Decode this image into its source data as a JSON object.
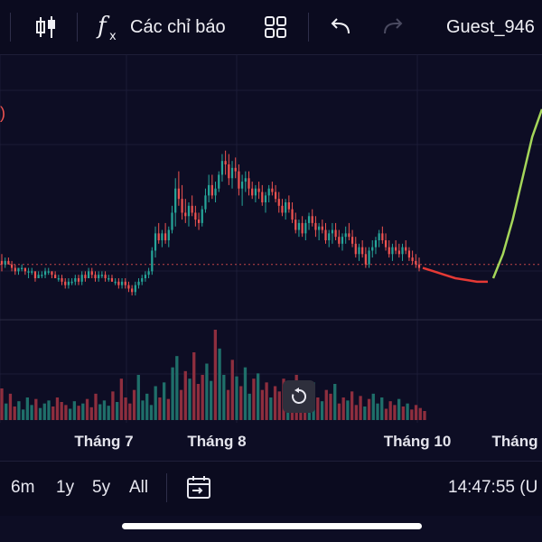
{
  "toolbar": {
    "indicators_label": "Các chỉ báo",
    "user_label": "Guest_946",
    "icons": [
      "candlestick-icon",
      "fx-icon",
      "layout-grid-icon",
      "undo-icon",
      "redo-icon"
    ]
  },
  "chart": {
    "left_edge_label": ")",
    "x_ticks": [
      "Tháng 7",
      "Tháng 8",
      "Tháng 10",
      "Tháng"
    ]
  },
  "bottom": {
    "ranges": [
      "6m",
      "1y",
      "5y",
      "All"
    ],
    "clock": "14:47:55 (U"
  },
  "colors": {
    "background": "#0d0d24",
    "up": "#26a69a",
    "down": "#ef5350",
    "forecast_down": "#e53935",
    "forecast_up": "#a5d65a",
    "volume_up": "#1f6f6a",
    "volume_down": "#8e2e3e"
  },
  "chart_data": {
    "type": "candlestick",
    "x_labels": [
      "Tháng 7",
      "Tháng 8",
      "Tháng 10",
      "Tháng"
    ],
    "ohlc": [
      [
        36,
        38,
        33,
        35
      ],
      [
        35,
        37,
        34,
        36
      ],
      [
        36,
        37,
        35,
        35
      ],
      [
        35,
        36,
        33,
        34
      ],
      [
        34,
        35,
        32,
        33
      ],
      [
        33,
        34,
        32,
        34
      ],
      [
        34,
        35,
        33,
        34
      ],
      [
        34,
        34,
        32,
        33
      ],
      [
        33,
        34,
        31,
        33
      ],
      [
        33,
        34,
        32,
        33
      ],
      [
        33,
        33,
        30,
        31
      ],
      [
        31,
        33,
        31,
        32
      ],
      [
        32,
        33,
        31,
        32
      ],
      [
        32,
        34,
        31,
        33
      ],
      [
        33,
        34,
        32,
        33
      ],
      [
        33,
        33,
        31,
        32
      ],
      [
        32,
        33,
        31,
        31
      ],
      [
        31,
        32,
        30,
        31
      ],
      [
        31,
        32,
        29,
        30
      ],
      [
        30,
        31,
        28,
        29
      ],
      [
        29,
        31,
        28,
        30
      ],
      [
        30,
        31,
        29,
        30
      ],
      [
        30,
        32,
        29,
        31
      ],
      [
        31,
        32,
        29,
        30
      ],
      [
        30,
        33,
        29,
        32
      ],
      [
        32,
        33,
        30,
        31
      ],
      [
        31,
        34,
        31,
        33
      ],
      [
        33,
        34,
        31,
        32
      ],
      [
        32,
        33,
        30,
        31
      ],
      [
        31,
        33,
        30,
        32
      ],
      [
        32,
        33,
        31,
        32
      ],
      [
        32,
        33,
        30,
        31
      ],
      [
        31,
        32,
        30,
        31
      ],
      [
        31,
        32,
        30,
        30
      ],
      [
        30,
        31,
        29,
        30
      ],
      [
        30,
        31,
        28,
        29
      ],
      [
        29,
        31,
        28,
        30
      ],
      [
        30,
        31,
        28,
        29
      ],
      [
        29,
        30,
        27,
        28
      ],
      [
        28,
        29,
        26,
        27
      ],
      [
        27,
        30,
        26,
        29
      ],
      [
        29,
        31,
        28,
        30
      ],
      [
        30,
        32,
        29,
        31
      ],
      [
        31,
        33,
        30,
        32
      ],
      [
        32,
        34,
        31,
        33
      ],
      [
        33,
        40,
        32,
        39
      ],
      [
        39,
        46,
        37,
        44
      ],
      [
        44,
        47,
        41,
        42
      ],
      [
        42,
        45,
        40,
        44
      ],
      [
        44,
        47,
        41,
        42
      ],
      [
        42,
        46,
        40,
        45
      ],
      [
        45,
        52,
        44,
        50
      ],
      [
        50,
        60,
        46,
        57
      ],
      [
        57,
        62,
        52,
        54
      ],
      [
        54,
        58,
        48,
        50
      ],
      [
        50,
        54,
        47,
        49
      ],
      [
        49,
        53,
        46,
        52
      ],
      [
        52,
        55,
        49,
        50
      ],
      [
        50,
        52,
        46,
        48
      ],
      [
        48,
        50,
        45,
        47
      ],
      [
        47,
        52,
        46,
        51
      ],
      [
        51,
        57,
        50,
        55
      ],
      [
        55,
        61,
        53,
        58
      ],
      [
        58,
        61,
        54,
        55
      ],
      [
        55,
        59,
        53,
        57
      ],
      [
        57,
        62,
        56,
        61
      ],
      [
        61,
        67,
        59,
        65
      ],
      [
        65,
        68,
        61,
        64
      ],
      [
        64,
        67,
        58,
        60
      ],
      [
        60,
        65,
        57,
        63
      ],
      [
        63,
        66,
        60,
        62
      ],
      [
        62,
        64,
        55,
        57
      ],
      [
        57,
        61,
        52,
        59
      ],
      [
        59,
        62,
        56,
        60
      ],
      [
        60,
        62,
        55,
        57
      ],
      [
        57,
        59,
        54,
        55
      ],
      [
        55,
        58,
        53,
        57
      ],
      [
        57,
        59,
        54,
        56
      ],
      [
        56,
        58,
        52,
        53
      ],
      [
        53,
        56,
        50,
        55
      ],
      [
        55,
        58,
        53,
        57
      ],
      [
        57,
        59,
        55,
        56
      ],
      [
        56,
        58,
        53,
        54
      ],
      [
        54,
        56,
        50,
        52
      ],
      [
        52,
        54,
        49,
        50
      ],
      [
        50,
        54,
        48,
        53
      ],
      [
        53,
        55,
        50,
        51
      ],
      [
        51,
        53,
        47,
        48
      ],
      [
        48,
        50,
        44,
        45
      ],
      [
        45,
        48,
        43,
        47
      ],
      [
        47,
        49,
        43,
        44
      ],
      [
        44,
        48,
        42,
        47
      ],
      [
        47,
        50,
        45,
        49
      ],
      [
        49,
        51,
        46,
        47
      ],
      [
        47,
        49,
        43,
        45
      ],
      [
        45,
        47,
        42,
        46
      ],
      [
        46,
        48,
        44,
        45
      ],
      [
        45,
        47,
        41,
        42
      ],
      [
        42,
        45,
        40,
        44
      ],
      [
        44,
        47,
        41,
        45
      ],
      [
        45,
        47,
        42,
        43
      ],
      [
        43,
        45,
        40,
        41
      ],
      [
        41,
        44,
        39,
        43
      ],
      [
        43,
        46,
        41,
        44
      ],
      [
        44,
        47,
        42,
        43
      ],
      [
        43,
        45,
        40,
        41
      ],
      [
        41,
        43,
        37,
        38
      ],
      [
        38,
        41,
        36,
        40
      ],
      [
        40,
        42,
        37,
        38
      ],
      [
        38,
        40,
        34,
        35
      ],
      [
        35,
        40,
        34,
        39
      ],
      [
        39,
        42,
        37,
        40
      ],
      [
        40,
        43,
        38,
        42
      ],
      [
        42,
        45,
        40,
        44
      ],
      [
        44,
        46,
        41,
        42
      ],
      [
        42,
        44,
        39,
        40
      ],
      [
        40,
        42,
        37,
        38
      ],
      [
        38,
        41,
        36,
        40
      ],
      [
        40,
        42,
        38,
        39
      ],
      [
        39,
        41,
        37,
        38
      ],
      [
        38,
        41,
        36,
        40
      ],
      [
        40,
        42,
        38,
        39
      ],
      [
        39,
        40,
        36,
        37
      ],
      [
        37,
        39,
        35,
        36
      ],
      [
        36,
        38,
        34,
        35
      ],
      [
        35,
        37,
        33,
        34
      ]
    ],
    "forecast_down": [
      34,
      33,
      32,
      31,
      30.5,
      30,
      30
    ],
    "forecast_up": [
      31,
      38,
      48,
      60,
      72,
      80
    ],
    "volume": [
      42,
      22,
      35,
      18,
      25,
      14,
      30,
      20,
      28,
      16,
      22,
      26,
      18,
      30,
      24,
      20,
      15,
      25,
      19,
      22,
      28,
      17,
      35,
      21,
      26,
      19,
      38,
      24,
      55,
      30,
      22,
      40,
      60,
      26,
      35,
      20,
      45,
      30,
      50,
      28,
      70,
      85,
      40,
      65,
      55,
      90,
      48,
      60,
      75,
      52,
      120,
      95,
      60,
      40,
      80,
      58,
      45,
      70,
      35,
      55,
      62,
      40,
      50,
      30,
      45,
      38,
      55,
      42,
      35,
      60,
      28,
      45,
      38,
      50,
      30,
      25,
      40,
      35,
      48,
      22,
      30,
      26,
      38,
      20,
      32,
      18,
      28,
      35,
      22,
      30,
      15,
      25,
      20,
      28,
      18,
      22,
      14,
      20,
      16,
      12
    ],
    "last_price_line": 35
  }
}
